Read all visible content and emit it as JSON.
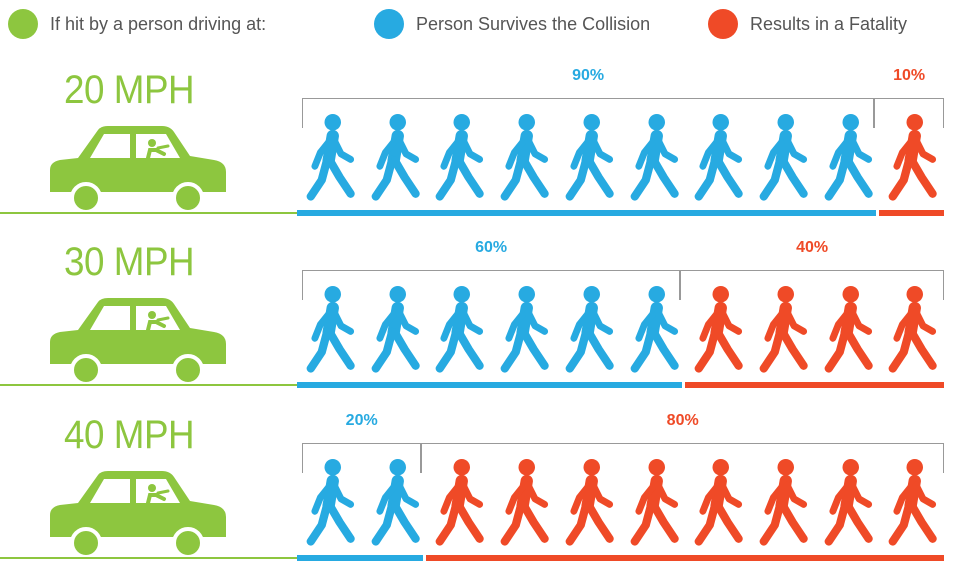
{
  "legend": {
    "driving": "If hit by a person driving at:",
    "survives": "Person Survives the Collision",
    "fatality": "Results in a Fatality"
  },
  "colors": {
    "green": "#8dc63f",
    "survive": "#27aae1",
    "fatal": "#ef4a27"
  },
  "chart_data": [
    {
      "type": "pictogram",
      "speed_label": "20 MPH",
      "categories": [
        "Person Survives the Collision",
        "Results in a Fatality"
      ],
      "values": [
        90,
        10
      ],
      "labels": [
        "90%",
        "10%"
      ],
      "icons_total": 10
    },
    {
      "type": "pictogram",
      "speed_label": "30 MPH",
      "categories": [
        "Person Survives the Collision",
        "Results in a Fatality"
      ],
      "values": [
        60,
        40
      ],
      "labels": [
        "60%",
        "40%"
      ],
      "icons_total": 10
    },
    {
      "type": "pictogram",
      "speed_label": "40 MPH",
      "categories": [
        "Person Survives the Collision",
        "Results in a Fatality"
      ],
      "values": [
        20,
        80
      ],
      "labels": [
        "20%",
        "80%"
      ],
      "icons_total": 10
    }
  ]
}
